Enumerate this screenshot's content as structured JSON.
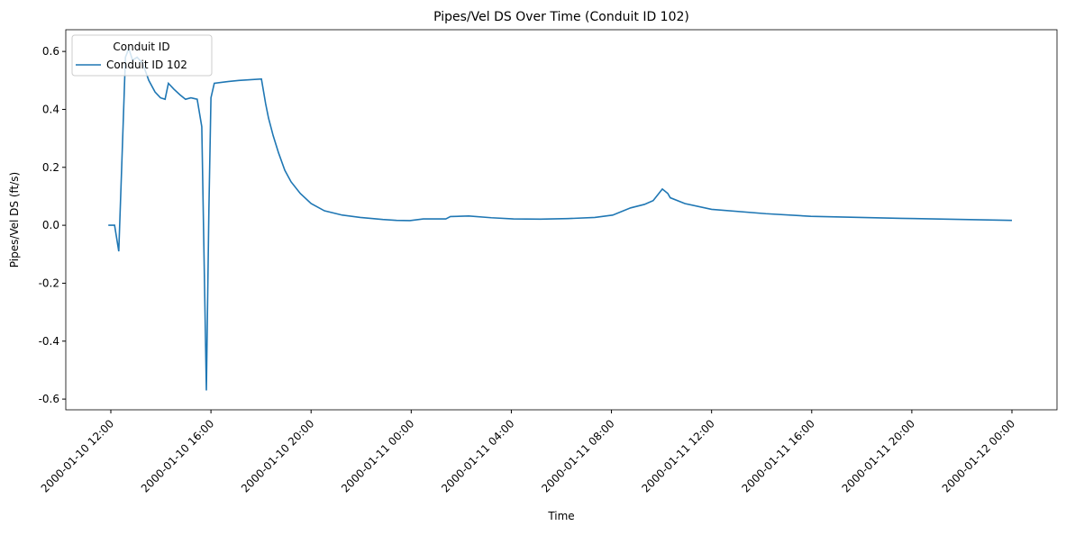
{
  "chart_data": {
    "type": "line",
    "title": "Pipes/Vel DS Over Time (Conduit ID 102)",
    "x_label": "Time",
    "y_label": "Pipes/Vel DS (ft/s)",
    "legend_title": "Conduit ID",
    "legend_loc": "upper left",
    "x": [
      "2000-01-10 11:54",
      "2000-01-10 12:09",
      "2000-01-10 12:19",
      "2000-01-10 12:26",
      "2000-01-10 12:35",
      "2000-01-10 12:43",
      "2000-01-10 12:52",
      "2000-01-10 13:03",
      "2000-01-10 13:16",
      "2000-01-10 13:31",
      "2000-01-10 13:46",
      "2000-01-10 13:59",
      "2000-01-10 14:10",
      "2000-01-10 14:18",
      "2000-01-10 14:31",
      "2000-01-10 14:46",
      "2000-01-10 14:59",
      "2000-01-10 15:12",
      "2000-01-10 15:27",
      "2000-01-10 15:38",
      "2000-01-10 15:49",
      "2000-01-10 15:55",
      "2000-01-10 16:00",
      "2000-01-10 16:08",
      "2000-01-10 16:34",
      "2000-01-10 17:07",
      "2000-01-10 18:01",
      "2000-01-10 18:11",
      "2000-01-10 18:18",
      "2000-01-10 18:29",
      "2000-01-10 18:42",
      "2000-01-10 18:57",
      "2000-01-10 19:12",
      "2000-01-10 19:34",
      "2000-01-10 20:00",
      "2000-01-10 20:32",
      "2000-01-10 21:15",
      "2000-01-10 21:58",
      "2000-01-10 22:52",
      "2000-01-10 23:25",
      "2000-01-10 23:57",
      "2000-01-11 00:29",
      "2000-01-11 01:23",
      "2000-01-11 01:34",
      "2000-01-11 02:18",
      "2000-01-11 03:12",
      "2000-01-11 04:05",
      "2000-01-11 05:10",
      "2000-01-11 06:15",
      "2000-01-11 07:20",
      "2000-01-11 08:03",
      "2000-01-11 08:46",
      "2000-01-11 09:19",
      "2000-01-11 09:40",
      "2000-01-11 10:02",
      "2000-01-11 10:15",
      "2000-01-11 10:21",
      "2000-01-11 10:56",
      "2000-01-11 12:00",
      "2000-01-11 14:10",
      "2000-01-11 15:58",
      "2000-01-11 19:34",
      "2000-01-12 00:00"
    ],
    "series": [
      {
        "name": "Conduit ID 102",
        "color": "#1f77b4",
        "values": [
          0,
          0,
          -0.09,
          0.2,
          0.58,
          0.61,
          0.57,
          0.58,
          0.56,
          0.5,
          0.46,
          0.44,
          0.435,
          0.49,
          0.47,
          0.45,
          0.435,
          0.44,
          0.435,
          0.34,
          -0.57,
          0.05,
          0.44,
          0.49,
          0.495,
          0.5,
          0.505,
          0.42,
          0.37,
          0.31,
          0.25,
          0.19,
          0.15,
          0.11,
          0.075,
          0.05,
          0.035,
          0.027,
          0.02,
          0.017,
          0.016,
          0.022,
          0.022,
          0.03,
          0.032,
          0.026,
          0.022,
          0.021,
          0.023,
          0.027,
          0.035,
          0.06,
          0.072,
          0.085,
          0.125,
          0.11,
          0.095,
          0.075,
          0.055,
          0.04,
          0.031,
          0.024,
          0.017
        ]
      }
    ],
    "xlim": [
      "2000-01-10 10:12",
      "2000-01-12 01:48"
    ],
    "xticks": [
      "2000-01-10 12:00",
      "2000-01-10 16:00",
      "2000-01-10 20:00",
      "2000-01-11 00:00",
      "2000-01-11 04:00",
      "2000-01-11 08:00",
      "2000-01-11 12:00",
      "2000-01-11 16:00",
      "2000-01-11 20:00",
      "2000-01-12 00:00"
    ],
    "ylim": [
      -0.637,
      0.675
    ],
    "yticks": [
      -0.6,
      -0.4,
      -0.2,
      {
        "value": 0,
        "label": "0.0"
      },
      0.2,
      0.4,
      0.6
    ]
  }
}
